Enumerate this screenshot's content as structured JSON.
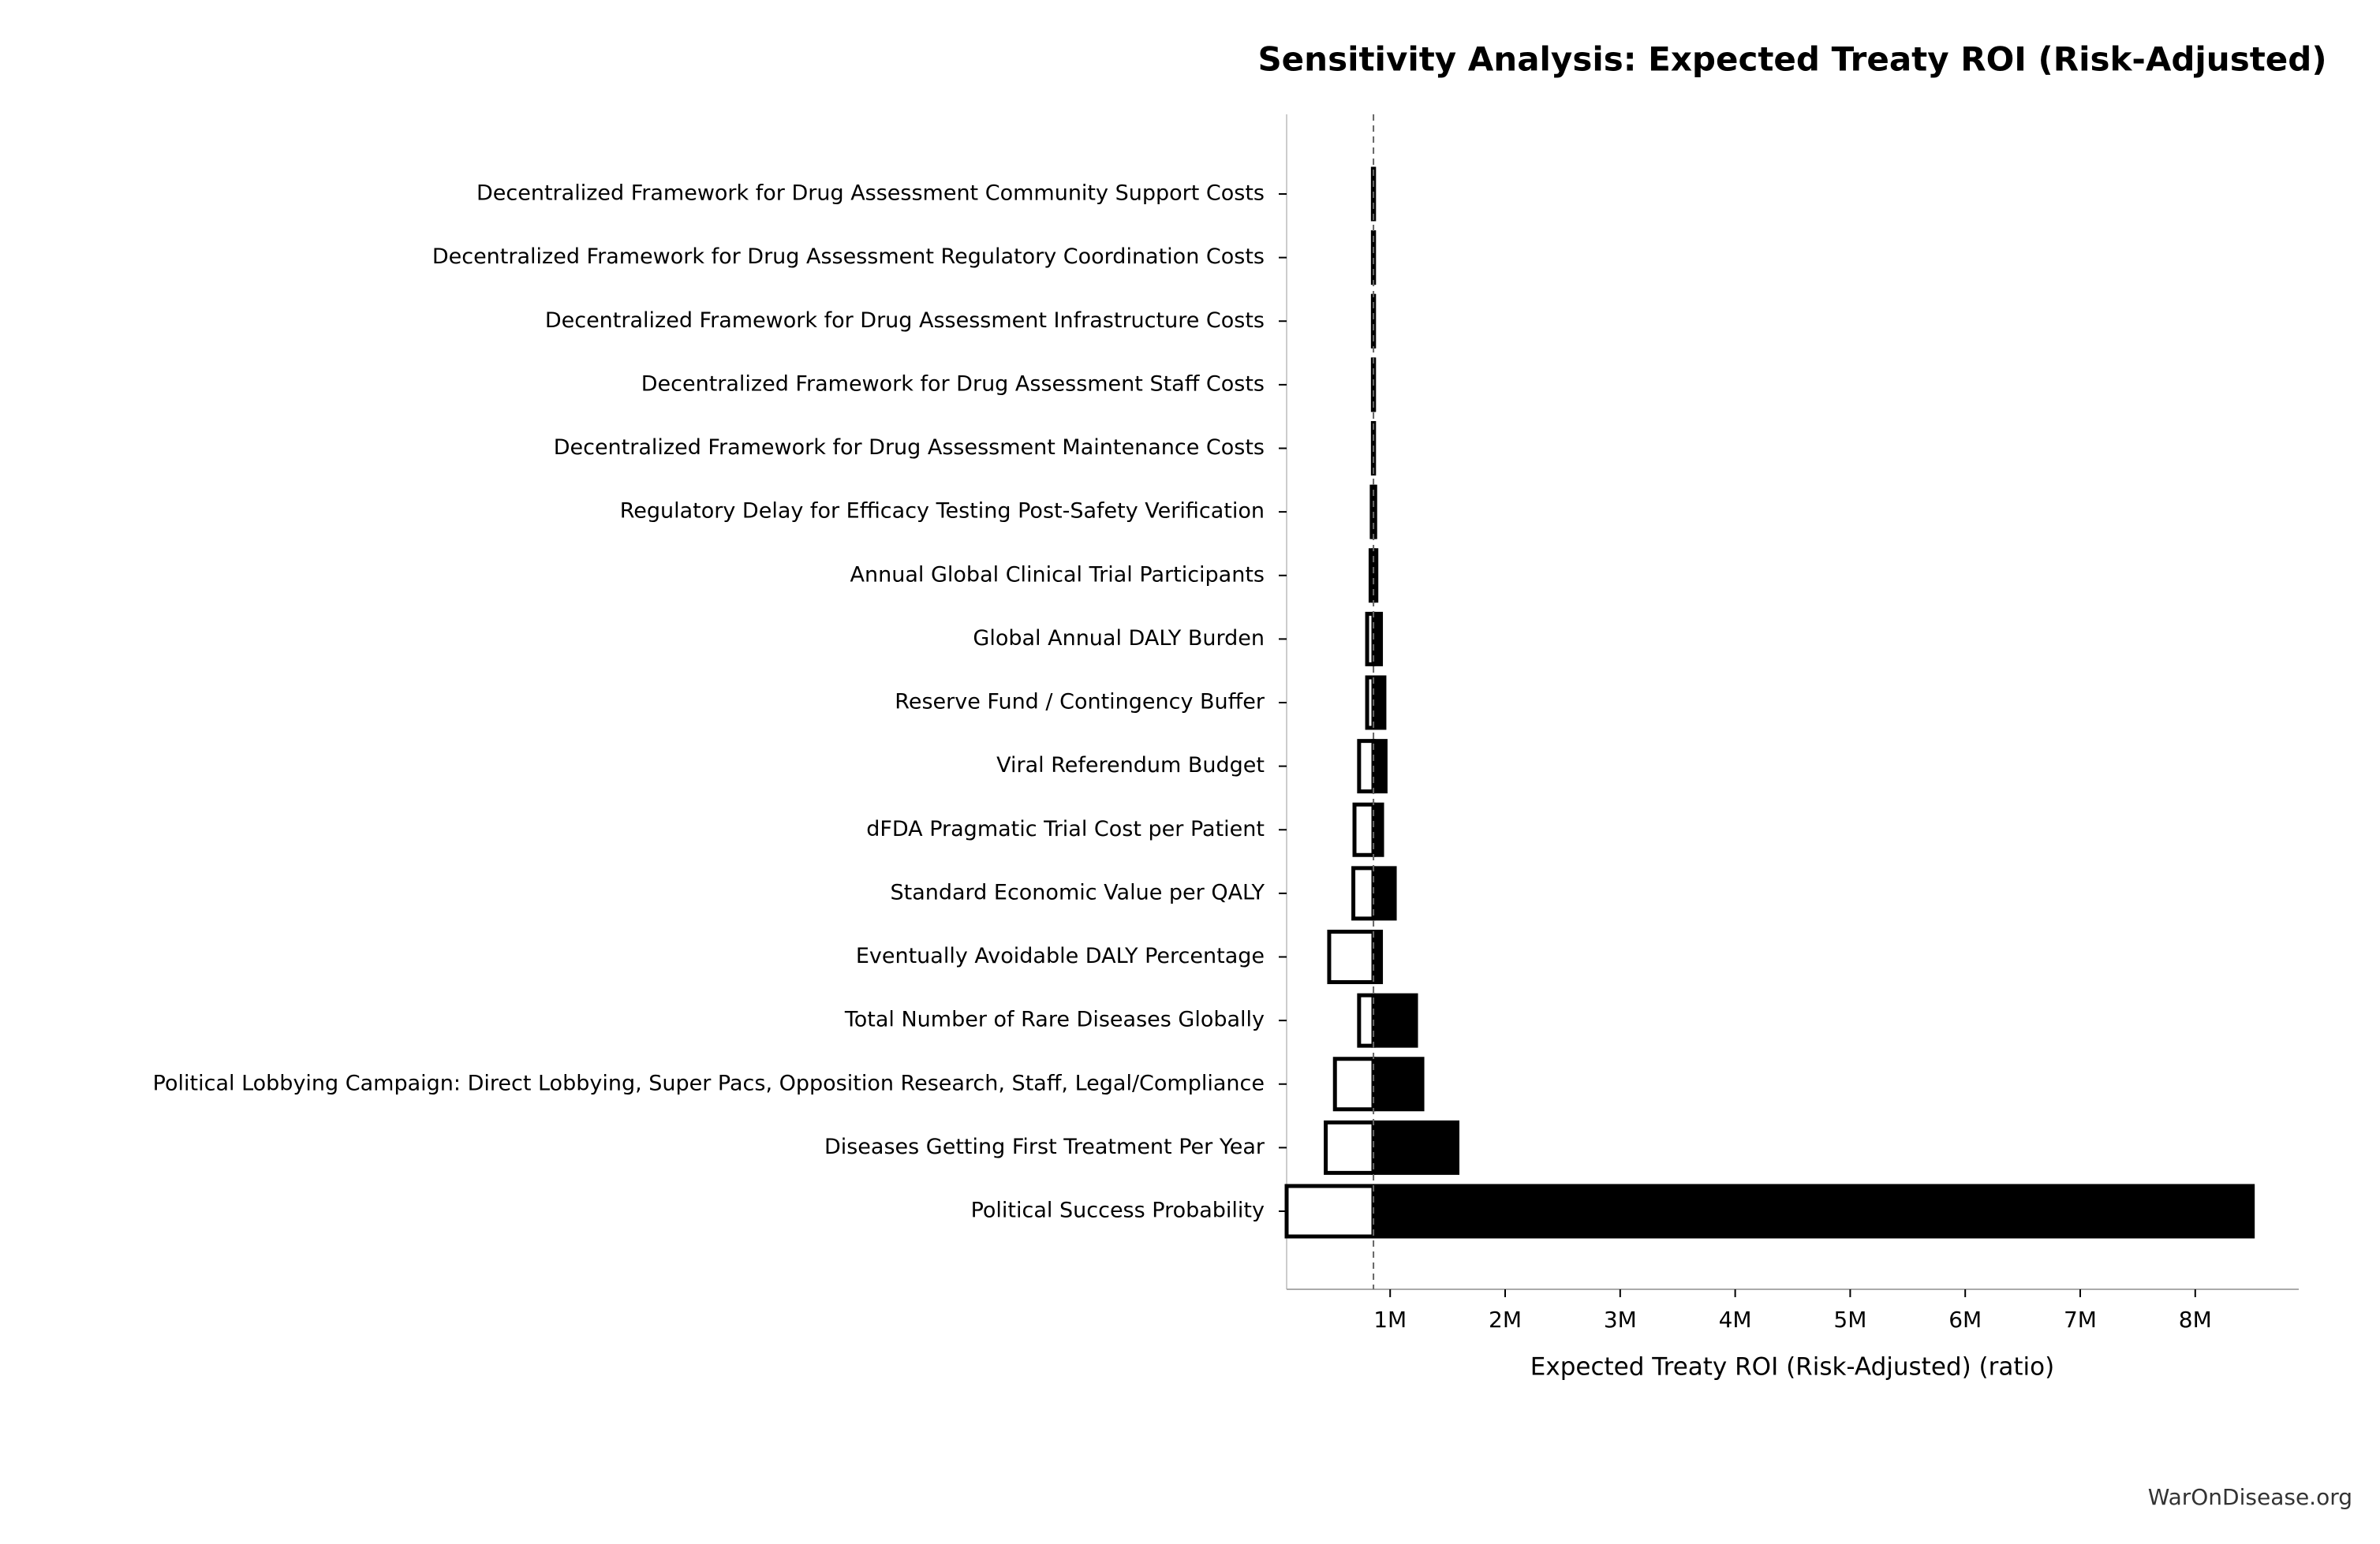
{
  "chart_data": {
    "type": "tornado",
    "title": "Sensitivity Analysis: Expected Treaty ROI (Risk-Adjusted)",
    "x_label": "Expected Treaty ROI (Risk-Adjusted) (ratio)",
    "footer": "WarOnDisease.org",
    "categories": [
      "Decentralized Framework for Drug Assessment Community Support Costs",
      "Decentralized Framework for Drug Assessment Regulatory Coordination Costs",
      "Decentralized Framework for Drug Assessment Infrastructure Costs",
      "Decentralized Framework for Drug Assessment Staff Costs",
      "Decentralized Framework for Drug Assessment Maintenance Costs",
      "Regulatory Delay for Efficacy Testing Post-Safety Verification",
      "Annual Global Clinical Trial Participants",
      "Global Annual DALY Burden",
      "Reserve Fund / Contingency Buffer",
      "Viral Referendum Budget",
      "dFDA Pragmatic Trial Cost per Patient",
      "Standard Economic Value per QALY",
      "Eventually Avoidable DALY Percentage",
      "Total Number of Rare Diseases Globally",
      "Political Lobbying Campaign: Direct Lobbying, Super Pacs, Opposition Research, Staff, Legal/Compliance",
      "Diseases Getting First Treatment Per Year",
      "Political Success Probability"
    ],
    "baseline": 855000,
    "low": [
      850000,
      850000,
      850000,
      850000,
      850000,
      840000,
      830000,
      800000,
      800000,
      730000,
      690000,
      680000,
      470000,
      730000,
      520000,
      440000,
      100000
    ],
    "high": [
      860000,
      860000,
      860000,
      860000,
      860000,
      870000,
      880000,
      920000,
      950000,
      960000,
      930000,
      1040000,
      920000,
      1225000,
      1280000,
      1585000,
      8500000
    ],
    "low_color": "#ffffff",
    "high_color": "#000000",
    "xlim": [
      100000,
      8900000
    ],
    "xticks": [
      {
        "value": 1000000,
        "label": "1M"
      },
      {
        "value": 2000000,
        "label": "2M"
      },
      {
        "value": 3000000,
        "label": "3M"
      },
      {
        "value": 4000000,
        "label": "4M"
      },
      {
        "value": 5000000,
        "label": "5M"
      },
      {
        "value": 6000000,
        "label": "6M"
      },
      {
        "value": 7000000,
        "label": "7M"
      },
      {
        "value": 8000000,
        "label": "8M"
      }
    ]
  }
}
